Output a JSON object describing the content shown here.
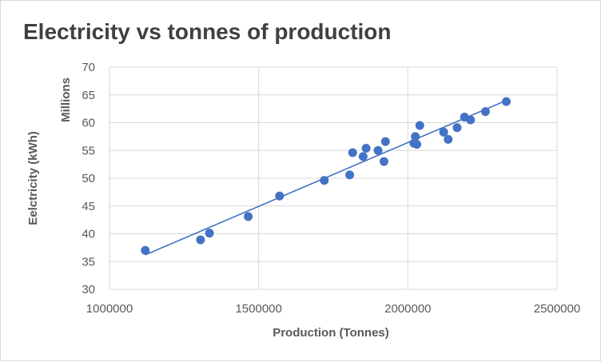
{
  "chart_data": {
    "type": "scatter",
    "title": "Electricity vs tonnes of production",
    "xlabel": "Production (Tonnes)",
    "ylabel": "Eelctricity (kWh)",
    "y_display_unit": "Millions",
    "xlim": [
      1000000,
      2500000
    ],
    "ylim": [
      30,
      70
    ],
    "x_ticks": [
      1000000,
      1500000,
      2000000,
      2500000
    ],
    "x_tick_labels": [
      "1000000",
      "1500000",
      "2000000",
      "2500000"
    ],
    "y_ticks": [
      30,
      35,
      40,
      45,
      50,
      55,
      60,
      65,
      70
    ],
    "y_tick_labels": [
      "30",
      "35",
      "40",
      "45",
      "50",
      "55",
      "60",
      "65",
      "70"
    ],
    "grid": true,
    "marker_color": "#4472c4",
    "trendline": {
      "type": "linear",
      "x": [
        1120000,
        2330000
      ],
      "y": [
        36.2,
        64.0
      ],
      "color": "#4472c4"
    },
    "series": [
      {
        "name": "Electricity",
        "points": [
          [
            1120000,
            37.0
          ],
          [
            1305000,
            38.9
          ],
          [
            1335000,
            40.1
          ],
          [
            1465000,
            43.1
          ],
          [
            1570000,
            46.8
          ],
          [
            1720000,
            49.6
          ],
          [
            1805000,
            50.6
          ],
          [
            1815000,
            54.6
          ],
          [
            1850000,
            53.9
          ],
          [
            1860000,
            55.4
          ],
          [
            1900000,
            55.0
          ],
          [
            1920000,
            53.0
          ],
          [
            1925000,
            56.6
          ],
          [
            2020000,
            56.3
          ],
          [
            2025000,
            57.5
          ],
          [
            2030000,
            56.1
          ],
          [
            2040000,
            59.5
          ],
          [
            2120000,
            58.3
          ],
          [
            2135000,
            57.0
          ],
          [
            2165000,
            59.1
          ],
          [
            2190000,
            61.0
          ],
          [
            2210000,
            60.5
          ],
          [
            2260000,
            62.0
          ],
          [
            2330000,
            63.8
          ]
        ]
      }
    ]
  }
}
